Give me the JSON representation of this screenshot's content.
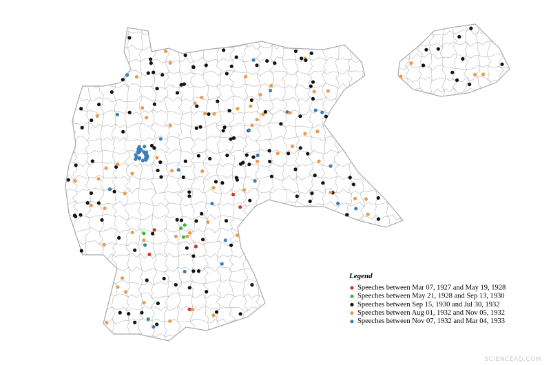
{
  "legend": {
    "title": "Legend",
    "items": [
      "Speeches between Mar 07, 1927 and May 19, 1928",
      "Speeches between May 21, 1928 and Sep 13, 1930",
      "Speeches between Sep 15, 1930 and Jul 30, 1932",
      "Speeches between Aug 01, 1932 and Nov 05, 1932",
      "Speeches between Nov 07, 1932 and Mar 04, 1933"
    ]
  },
  "watermark": "SCIENCEAQ.COM"
}
